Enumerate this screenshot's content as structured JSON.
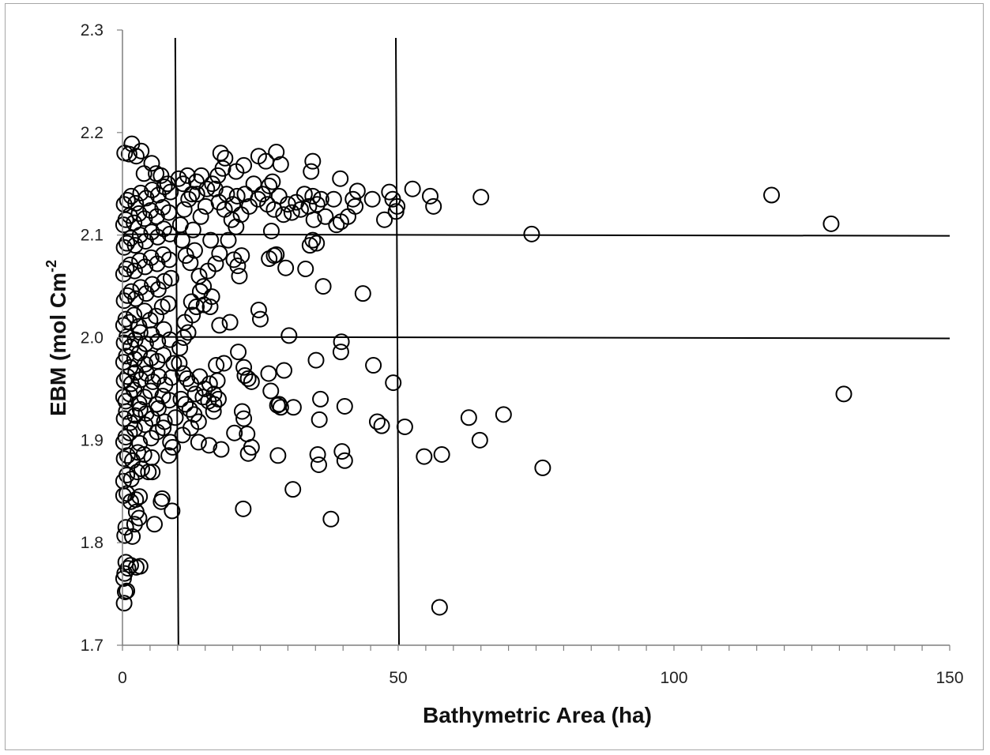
{
  "chart_data": {
    "type": "scatter",
    "title": "",
    "xlabel": "Bathymetric Area (ha)",
    "ylabel": "EBM (mol Cm",
    "ylabel_superscript": "-2",
    "xlim": [
      0,
      150
    ],
    "ylim": [
      1.7,
      2.3
    ],
    "x_ticks": [
      0,
      50,
      100,
      150
    ],
    "x_tick_labels": [
      "0",
      "50",
      "100",
      "150"
    ],
    "x_minor_step": 5,
    "y_ticks": [
      1.7,
      1.8,
      1.9,
      2.0,
      2.1,
      2.2,
      2.3
    ],
    "y_tick_labels": [
      "1.7",
      "1.8",
      "1.9",
      "2.0",
      "2.1",
      "2.2",
      "2.3"
    ],
    "grid": false,
    "legend": "none",
    "marker": "open-circle",
    "colors": {
      "marker_stroke": "#000000",
      "reference_lines": "#000000",
      "axis": "#7f7f7f",
      "frame": "#a6a6a6"
    },
    "reference_lines": {
      "vertical_x": [
        10,
        50
      ],
      "horizontal_y": [
        2.0,
        2.1
      ]
    },
    "points": [
      [
        0.3,
        1.741
      ],
      [
        0.5,
        1.752
      ],
      [
        0.8,
        1.753
      ],
      [
        0.2,
        1.765
      ],
      [
        0.4,
        1.77
      ],
      [
        0.6,
        1.781
      ],
      [
        1.0,
        1.775
      ],
      [
        1.5,
        1.778
      ],
      [
        2.5,
        1.776
      ],
      [
        3.2,
        1.777
      ],
      [
        0.4,
        1.807
      ],
      [
        0.6,
        1.815
      ],
      [
        1.8,
        1.806
      ],
      [
        2.2,
        1.818
      ],
      [
        3.0,
        1.824
      ],
      [
        5.8,
        1.818
      ],
      [
        2.5,
        1.83
      ],
      [
        7.0,
        1.84
      ],
      [
        7.2,
        1.843
      ],
      [
        9.0,
        1.831
      ],
      [
        0.2,
        1.846
      ],
      [
        0.8,
        1.848
      ],
      [
        1.5,
        1.84
      ],
      [
        2.4,
        1.842
      ],
      [
        3.1,
        1.845
      ],
      [
        0.2,
        1.86
      ],
      [
        0.8,
        1.866
      ],
      [
        1.6,
        1.862
      ],
      [
        2.7,
        1.869
      ],
      [
        3.5,
        1.872
      ],
      [
        4.7,
        1.869
      ],
      [
        5.4,
        1.869
      ],
      [
        0.3,
        1.882
      ],
      [
        0.9,
        1.885
      ],
      [
        1.8,
        1.88
      ],
      [
        2.8,
        1.888
      ],
      [
        3.9,
        1.886
      ],
      [
        5.3,
        1.883
      ],
      [
        8.4,
        1.885
      ],
      [
        9.1,
        1.893
      ],
      [
        0.2,
        1.898
      ],
      [
        0.6,
        1.903
      ],
      [
        1.3,
        1.907
      ],
      [
        2.2,
        1.911
      ],
      [
        3.1,
        1.897
      ],
      [
        4.1,
        1.915
      ],
      [
        5.2,
        1.902
      ],
      [
        6.3,
        1.908
      ],
      [
        7.4,
        1.912
      ],
      [
        8.7,
        1.898
      ],
      [
        0.3,
        1.921
      ],
      [
        0.7,
        1.928
      ],
      [
        1.4,
        1.917
      ],
      [
        2.3,
        1.924
      ],
      [
        3.2,
        1.93
      ],
      [
        4.3,
        1.926
      ],
      [
        5.4,
        1.921
      ],
      [
        6.5,
        1.931
      ],
      [
        7.6,
        1.918
      ],
      [
        9.6,
        1.922
      ],
      [
        0.2,
        1.942
      ],
      [
        0.6,
        1.938
      ],
      [
        1.3,
        1.945
      ],
      [
        2.1,
        1.949
      ],
      [
        3.0,
        1.936
      ],
      [
        4.0,
        1.942
      ],
      [
        5.1,
        1.948
      ],
      [
        6.2,
        1.935
      ],
      [
        7.3,
        1.943
      ],
      [
        8.5,
        1.939
      ],
      [
        0.3,
        1.958
      ],
      [
        0.9,
        1.962
      ],
      [
        1.6,
        1.955
      ],
      [
        2.4,
        1.966
      ],
      [
        3.3,
        1.959
      ],
      [
        4.4,
        1.965
      ],
      [
        5.5,
        1.957
      ],
      [
        6.6,
        1.962
      ],
      [
        7.7,
        1.954
      ],
      [
        8.9,
        1.961
      ],
      [
        0.2,
        1.976
      ],
      [
        0.7,
        1.982
      ],
      [
        1.4,
        1.971
      ],
      [
        2.2,
        1.979
      ],
      [
        3.1,
        1.985
      ],
      [
        4.1,
        1.974
      ],
      [
        5.2,
        1.98
      ],
      [
        6.3,
        1.977
      ],
      [
        7.4,
        1.983
      ],
      [
        9.3,
        1.975
      ],
      [
        0.3,
        1.995
      ],
      [
        0.8,
        2.001
      ],
      [
        1.5,
        1.991
      ],
      [
        2.3,
        1.998
      ],
      [
        3.2,
        2.005
      ],
      [
        4.2,
        1.994
      ],
      [
        5.3,
        2.003
      ],
      [
        6.4,
        1.996
      ],
      [
        7.5,
        2.008
      ],
      [
        8.6,
        1.998
      ],
      [
        0.2,
        2.012
      ],
      [
        0.6,
        2.018
      ],
      [
        1.3,
        2.015
      ],
      [
        2.1,
        2.022
      ],
      [
        3.0,
        2.011
      ],
      [
        4.0,
        2.026
      ],
      [
        5.0,
        2.017
      ],
      [
        6.1,
        2.021
      ],
      [
        7.2,
        2.03
      ],
      [
        8.3,
        2.033
      ],
      [
        0.3,
        2.036
      ],
      [
        0.9,
        2.041
      ],
      [
        1.6,
        2.045
      ],
      [
        2.4,
        2.038
      ],
      [
        3.3,
        2.049
      ],
      [
        4.3,
        2.043
      ],
      [
        5.4,
        2.052
      ],
      [
        6.5,
        2.047
      ],
      [
        7.6,
        2.055
      ],
      [
        8.8,
        2.058
      ],
      [
        0.2,
        2.062
      ],
      [
        0.7,
        2.067
      ],
      [
        1.4,
        2.071
      ],
      [
        2.2,
        2.065
      ],
      [
        3.1,
        2.075
      ],
      [
        4.1,
        2.069
      ],
      [
        5.2,
        2.078
      ],
      [
        6.3,
        2.072
      ],
      [
        7.4,
        2.081
      ],
      [
        8.5,
        2.076
      ],
      [
        0.3,
        2.088
      ],
      [
        0.8,
        2.092
      ],
      [
        1.5,
        2.097
      ],
      [
        2.3,
        2.09
      ],
      [
        3.2,
        2.1
      ],
      [
        4.2,
        2.094
      ],
      [
        5.3,
        2.103
      ],
      [
        6.4,
        2.098
      ],
      [
        7.5,
        2.106
      ],
      [
        8.6,
        2.101
      ],
      [
        0.2,
        2.11
      ],
      [
        0.6,
        2.115
      ],
      [
        1.3,
        2.119
      ],
      [
        2.1,
        2.112
      ],
      [
        3.0,
        2.121
      ],
      [
        4.0,
        2.116
      ],
      [
        5.1,
        2.124
      ],
      [
        6.2,
        2.118
      ],
      [
        7.3,
        2.127
      ],
      [
        8.4,
        2.122
      ],
      [
        0.3,
        2.13
      ],
      [
        0.9,
        2.134
      ],
      [
        1.6,
        2.138
      ],
      [
        2.4,
        2.131
      ],
      [
        3.3,
        2.141
      ],
      [
        4.3,
        2.136
      ],
      [
        5.4,
        2.144
      ],
      [
        6.5,
        2.139
      ],
      [
        7.6,
        2.147
      ],
      [
        8.7,
        2.142
      ],
      [
        0.4,
        2.18
      ],
      [
        1.2,
        2.179
      ],
      [
        1.7,
        2.189
      ],
      [
        2.5,
        2.177
      ],
      [
        3.4,
        2.182
      ],
      [
        3.9,
        2.16
      ],
      [
        5.3,
        2.17
      ],
      [
        6.1,
        2.16
      ],
      [
        7.0,
        2.158
      ],
      [
        8.2,
        2.15
      ],
      [
        10.5,
        2.11
      ],
      [
        11.2,
        2.125
      ],
      [
        12.0,
        2.135
      ],
      [
        12.8,
        2.105
      ],
      [
        13.5,
        2.14
      ],
      [
        14.2,
        2.118
      ],
      [
        15.1,
        2.128
      ],
      [
        16.0,
        2.095
      ],
      [
        16.8,
        2.145
      ],
      [
        17.5,
        2.132
      ],
      [
        10.8,
        2.095
      ],
      [
        11.5,
        2.08
      ],
      [
        12.3,
        2.073
      ],
      [
        13.1,
        2.085
      ],
      [
        13.9,
        2.06
      ],
      [
        14.7,
        2.05
      ],
      [
        15.5,
        2.065
      ],
      [
        16.2,
        2.04
      ],
      [
        16.9,
        2.072
      ],
      [
        17.6,
        2.082
      ],
      [
        10.2,
        2.155
      ],
      [
        11.0,
        2.15
      ],
      [
        11.8,
        2.158
      ],
      [
        12.6,
        2.14
      ],
      [
        13.4,
        2.152
      ],
      [
        14.3,
        2.158
      ],
      [
        15.3,
        2.145
      ],
      [
        16.3,
        2.15
      ],
      [
        17.3,
        2.158
      ],
      [
        18.2,
        2.165
      ],
      [
        10.4,
        1.99
      ],
      [
        11.1,
        2.0
      ],
      [
        11.9,
        2.005
      ],
      [
        12.7,
        2.022
      ],
      [
        13.4,
        2.03
      ],
      [
        14.1,
        2.045
      ],
      [
        11.3,
        2.015
      ],
      [
        12.5,
        2.035
      ],
      [
        14.8,
        2.032
      ],
      [
        15.9,
        2.03
      ],
      [
        10.3,
        1.975
      ],
      [
        11.0,
        1.965
      ],
      [
        11.7,
        1.96
      ],
      [
        12.4,
        1.955
      ],
      [
        13.2,
        1.945
      ],
      [
        14.0,
        1.962
      ],
      [
        14.9,
        1.95
      ],
      [
        15.8,
        1.955
      ],
      [
        16.6,
        1.945
      ],
      [
        17.4,
        1.94
      ],
      [
        10.6,
        1.94
      ],
      [
        11.4,
        1.935
      ],
      [
        12.2,
        1.93
      ],
      [
        13.0,
        1.925
      ],
      [
        13.8,
        1.918
      ],
      [
        14.6,
        1.942
      ],
      [
        15.6,
        1.938
      ],
      [
        16.5,
        1.928
      ],
      [
        10.9,
        1.905
      ],
      [
        12.4,
        1.912
      ],
      [
        13.8,
        1.898
      ],
      [
        15.7,
        1.895
      ],
      [
        17.9,
        1.891
      ],
      [
        16.6,
        1.935
      ],
      [
        17.2,
        1.958
      ],
      [
        17.0,
        1.973
      ],
      [
        18.4,
        1.975
      ],
      [
        19.5,
        2.015
      ],
      [
        17.6,
        2.012
      ],
      [
        20.6,
        2.108
      ],
      [
        18.5,
        2.125
      ],
      [
        19.2,
        2.095
      ],
      [
        20.0,
        2.13
      ],
      [
        20.8,
        2.138
      ],
      [
        21.5,
        2.12
      ],
      [
        22.2,
        2.14
      ],
      [
        23.0,
        2.128
      ],
      [
        23.8,
        2.15
      ],
      [
        24.6,
        2.135
      ],
      [
        25.4,
        2.14
      ],
      [
        20.2,
        2.076
      ],
      [
        20.9,
        2.07
      ],
      [
        21.6,
        2.08
      ],
      [
        21.2,
        2.06
      ],
      [
        19.8,
        2.115
      ],
      [
        18.9,
        2.14
      ],
      [
        17.8,
        2.18
      ],
      [
        18.6,
        2.175
      ],
      [
        20.6,
        2.162
      ],
      [
        22.0,
        2.168
      ],
      [
        24.7,
        2.177
      ],
      [
        26.0,
        2.172
      ],
      [
        26.6,
        2.148
      ],
      [
        27.2,
        2.152
      ],
      [
        27.9,
        2.181
      ],
      [
        28.7,
        2.169
      ],
      [
        26.3,
        2.13
      ],
      [
        27.5,
        2.125
      ],
      [
        28.4,
        2.138
      ],
      [
        29.2,
        2.12
      ],
      [
        30.0,
        2.13
      ],
      [
        30.7,
        2.122
      ],
      [
        31.5,
        2.132
      ],
      [
        32.3,
        2.125
      ],
      [
        33.0,
        2.14
      ],
      [
        33.8,
        2.128
      ],
      [
        34.5,
        2.138
      ],
      [
        35.3,
        2.13
      ],
      [
        36.0,
        2.135
      ],
      [
        36.8,
        2.118
      ],
      [
        27.0,
        2.104
      ],
      [
        26.6,
        2.077
      ],
      [
        27.5,
        2.08
      ],
      [
        27.9,
        2.081
      ],
      [
        29.6,
        2.068
      ],
      [
        33.2,
        2.067
      ],
      [
        34.0,
        2.09
      ],
      [
        34.5,
        2.095
      ],
      [
        35.2,
        2.092
      ],
      [
        34.7,
        2.115
      ],
      [
        34.2,
        2.162
      ],
      [
        34.5,
        2.172
      ],
      [
        38.3,
        2.135
      ],
      [
        39.5,
        2.155
      ],
      [
        38.8,
        2.11
      ],
      [
        39.6,
        2.113
      ],
      [
        40.9,
        2.118
      ],
      [
        41.8,
        2.135
      ],
      [
        42.6,
        2.143
      ],
      [
        42.2,
        2.128
      ],
      [
        45.3,
        2.135
      ],
      [
        47.5,
        2.115
      ],
      [
        48.4,
        2.142
      ],
      [
        49.0,
        2.135
      ],
      [
        49.6,
        2.123
      ],
      [
        49.8,
        2.128
      ],
      [
        52.6,
        2.145
      ],
      [
        55.8,
        2.138
      ],
      [
        56.4,
        2.128
      ],
      [
        65.0,
        2.137
      ],
      [
        74.2,
        2.101
      ],
      [
        117.7,
        2.139
      ],
      [
        128.5,
        2.111
      ],
      [
        130.8,
        1.945
      ],
      [
        36.4,
        2.05
      ],
      [
        43.6,
        2.043
      ],
      [
        24.7,
        2.027
      ],
      [
        25.0,
        2.018
      ],
      [
        30.2,
        2.002
      ],
      [
        39.7,
        1.996
      ],
      [
        39.6,
        1.986
      ],
      [
        21.0,
        1.986
      ],
      [
        35.1,
        1.978
      ],
      [
        45.5,
        1.973
      ],
      [
        22.0,
        1.971
      ],
      [
        22.2,
        1.963
      ],
      [
        22.8,
        1.96
      ],
      [
        23.4,
        1.957
      ],
      [
        26.5,
        1.965
      ],
      [
        29.3,
        1.968
      ],
      [
        49.1,
        1.956
      ],
      [
        26.9,
        1.948
      ],
      [
        35.9,
        1.94
      ],
      [
        28.1,
        1.934
      ],
      [
        28.7,
        1.932
      ],
      [
        28.4,
        1.935
      ],
      [
        31.0,
        1.932
      ],
      [
        40.3,
        1.933
      ],
      [
        35.7,
        1.92
      ],
      [
        21.7,
        1.928
      ],
      [
        22.0,
        1.921
      ],
      [
        46.2,
        1.918
      ],
      [
        47.0,
        1.914
      ],
      [
        51.2,
        1.913
      ],
      [
        62.8,
        1.922
      ],
      [
        69.1,
        1.925
      ],
      [
        20.3,
        1.907
      ],
      [
        22.6,
        1.906
      ],
      [
        23.4,
        1.893
      ],
      [
        22.8,
        1.887
      ],
      [
        28.2,
        1.885
      ],
      [
        35.4,
        1.886
      ],
      [
        35.6,
        1.876
      ],
      [
        39.8,
        1.889
      ],
      [
        40.3,
        1.88
      ],
      [
        54.7,
        1.884
      ],
      [
        57.9,
        1.886
      ],
      [
        64.8,
        1.9
      ],
      [
        76.2,
        1.873
      ],
      [
        21.9,
        1.833
      ],
      [
        30.9,
        1.852
      ],
      [
        37.8,
        1.823
      ],
      [
        57.5,
        1.737
      ]
    ]
  }
}
